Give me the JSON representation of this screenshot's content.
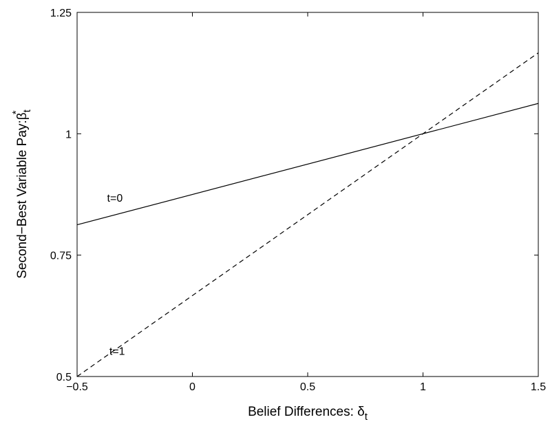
{
  "chart_data": {
    "type": "line",
    "xlabel": "Belief Differences: δ",
    "xlabel_sub": "t",
    "ylabel": "Second−Best Variable Pay:β",
    "ylabel_sup": "*",
    "ylabel_sub": "t",
    "xlim": [
      -0.5,
      1.5
    ],
    "ylim": [
      0.5,
      1.25
    ],
    "xticks": [
      -0.5,
      0,
      0.5,
      1,
      1.5
    ],
    "xtick_labels": [
      "−0.5",
      "0",
      "0.5",
      "1",
      "1.5"
    ],
    "yticks": [
      0.5,
      0.75,
      1,
      1.25
    ],
    "ytick_labels": [
      "0.5",
      "0.75",
      "1",
      "1.25"
    ],
    "grid": false,
    "series": [
      {
        "name": "t=0",
        "style": "solid",
        "x": [
          -0.5,
          1.5
        ],
        "y": [
          0.8125,
          1.0625
        ]
      },
      {
        "name": "t=1",
        "style": "dashed",
        "x": [
          -0.5,
          1.5
        ],
        "y": [
          0.5,
          1.1667
        ]
      }
    ],
    "annotations": [
      {
        "text": "t=0",
        "x": -0.37,
        "y": 0.86
      },
      {
        "text": "t=1",
        "x": -0.36,
        "y": 0.545
      }
    ]
  }
}
